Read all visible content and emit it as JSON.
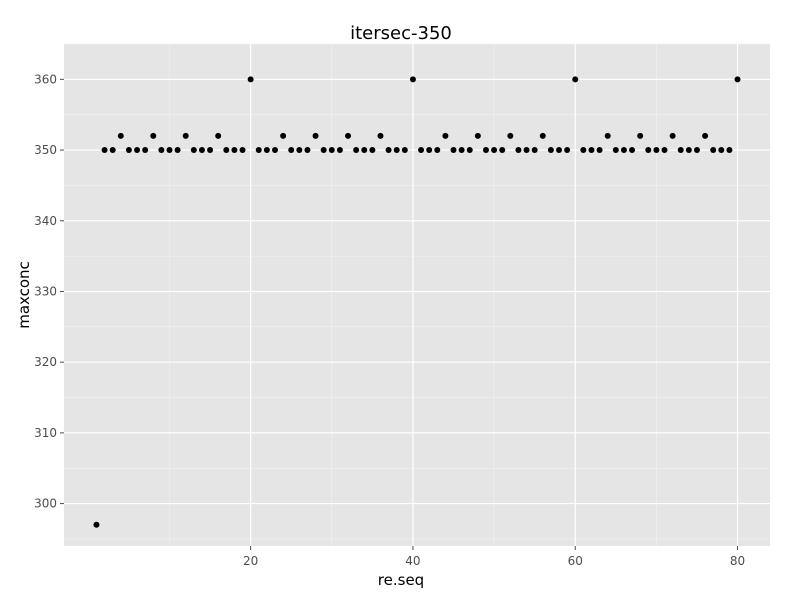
{
  "chart_data": {
    "type": "scatter",
    "title": "itersec-350",
    "xlabel": "re.seq",
    "ylabel": "maxconc",
    "xlim": [
      -3.0,
      84.0
    ],
    "ylim": [
      294.0,
      365.0
    ],
    "x_ticks": [
      20,
      40,
      60,
      80
    ],
    "y_ticks": [
      300,
      310,
      320,
      330,
      340,
      350,
      360
    ],
    "grid": true,
    "background": "#e5e5e5",
    "point_color": "#000000",
    "series": [
      {
        "x": [
          1,
          2,
          3,
          4,
          5,
          6,
          7,
          8,
          9,
          10,
          11,
          12,
          13,
          14,
          15,
          16,
          17,
          18,
          19,
          20,
          21,
          22,
          23,
          24,
          25,
          26,
          27,
          28,
          29,
          30,
          31,
          32,
          33,
          34,
          35,
          36,
          37,
          38,
          39,
          40,
          41,
          42,
          43,
          44,
          45,
          46,
          47,
          48,
          49,
          50,
          51,
          52,
          53,
          54,
          55,
          56,
          57,
          58,
          59,
          60,
          61,
          62,
          63,
          64,
          65,
          66,
          67,
          68,
          69,
          70,
          71,
          72,
          73,
          74,
          75,
          76,
          77,
          78,
          79,
          80
        ],
        "y": [
          297,
          350,
          350,
          352,
          350,
          350,
          350,
          352,
          350,
          350,
          350,
          352,
          350,
          350,
          350,
          352,
          350,
          350,
          350,
          360,
          350,
          350,
          350,
          352,
          350,
          350,
          350,
          352,
          350,
          350,
          350,
          352,
          350,
          350,
          350,
          352,
          350,
          350,
          350,
          360,
          350,
          350,
          350,
          352,
          350,
          350,
          350,
          352,
          350,
          350,
          350,
          352,
          350,
          350,
          350,
          352,
          350,
          350,
          350,
          360,
          350,
          350,
          350,
          352,
          350,
          350,
          350,
          352,
          350,
          350,
          350,
          352,
          350,
          350,
          350,
          352,
          350,
          350,
          350,
          360
        ]
      }
    ]
  }
}
